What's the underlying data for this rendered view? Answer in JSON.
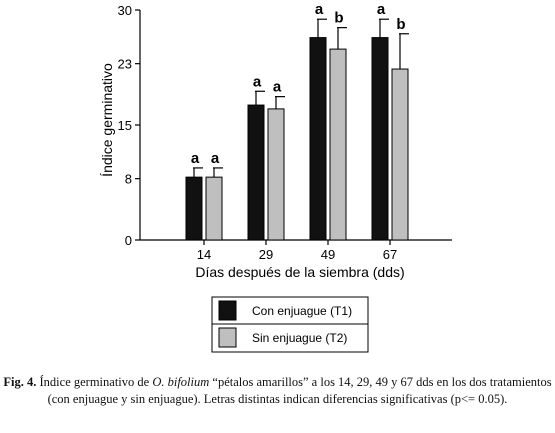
{
  "chart_data": {
    "type": "bar",
    "categories": [
      "14",
      "29",
      "49",
      "67"
    ],
    "series": [
      {
        "name": "Con enjuague (T1)",
        "color": "#111111",
        "values": [
          8.2,
          17.6,
          26.4,
          26.4
        ],
        "errors": [
          1.2,
          1.8,
          2.4,
          2.4
        ],
        "letters": [
          "a",
          "a",
          "a",
          "a"
        ]
      },
      {
        "name": "Sin enjuague (T2)",
        "color": "#bfbfbf",
        "values": [
          8.2,
          17.1,
          24.9,
          22.3
        ],
        "errors": [
          1.2,
          1.6,
          2.8,
          4.6
        ],
        "letters": [
          "a",
          "a",
          "b",
          "b"
        ]
      }
    ],
    "y_ticks": [
      "0",
      "8",
      "15",
      "23",
      "30"
    ],
    "ylim": [
      0,
      30
    ],
    "ylabel": "Índice germinativo",
    "xlabel": "Días después de la siembra (dds)",
    "legend_position": "bottom-center"
  },
  "caption": {
    "lead": "Fig. 4.",
    "text_a": " Índice germinativo de ",
    "species": "O. bifolium",
    "text_b": " “pétalos amarillos” a los 14, 29, 49 y 67 dds en los dos tratamientos (con enjuague y sin enjuague). Letras distintas indican diferencias significativas (p<= 0.05)."
  }
}
